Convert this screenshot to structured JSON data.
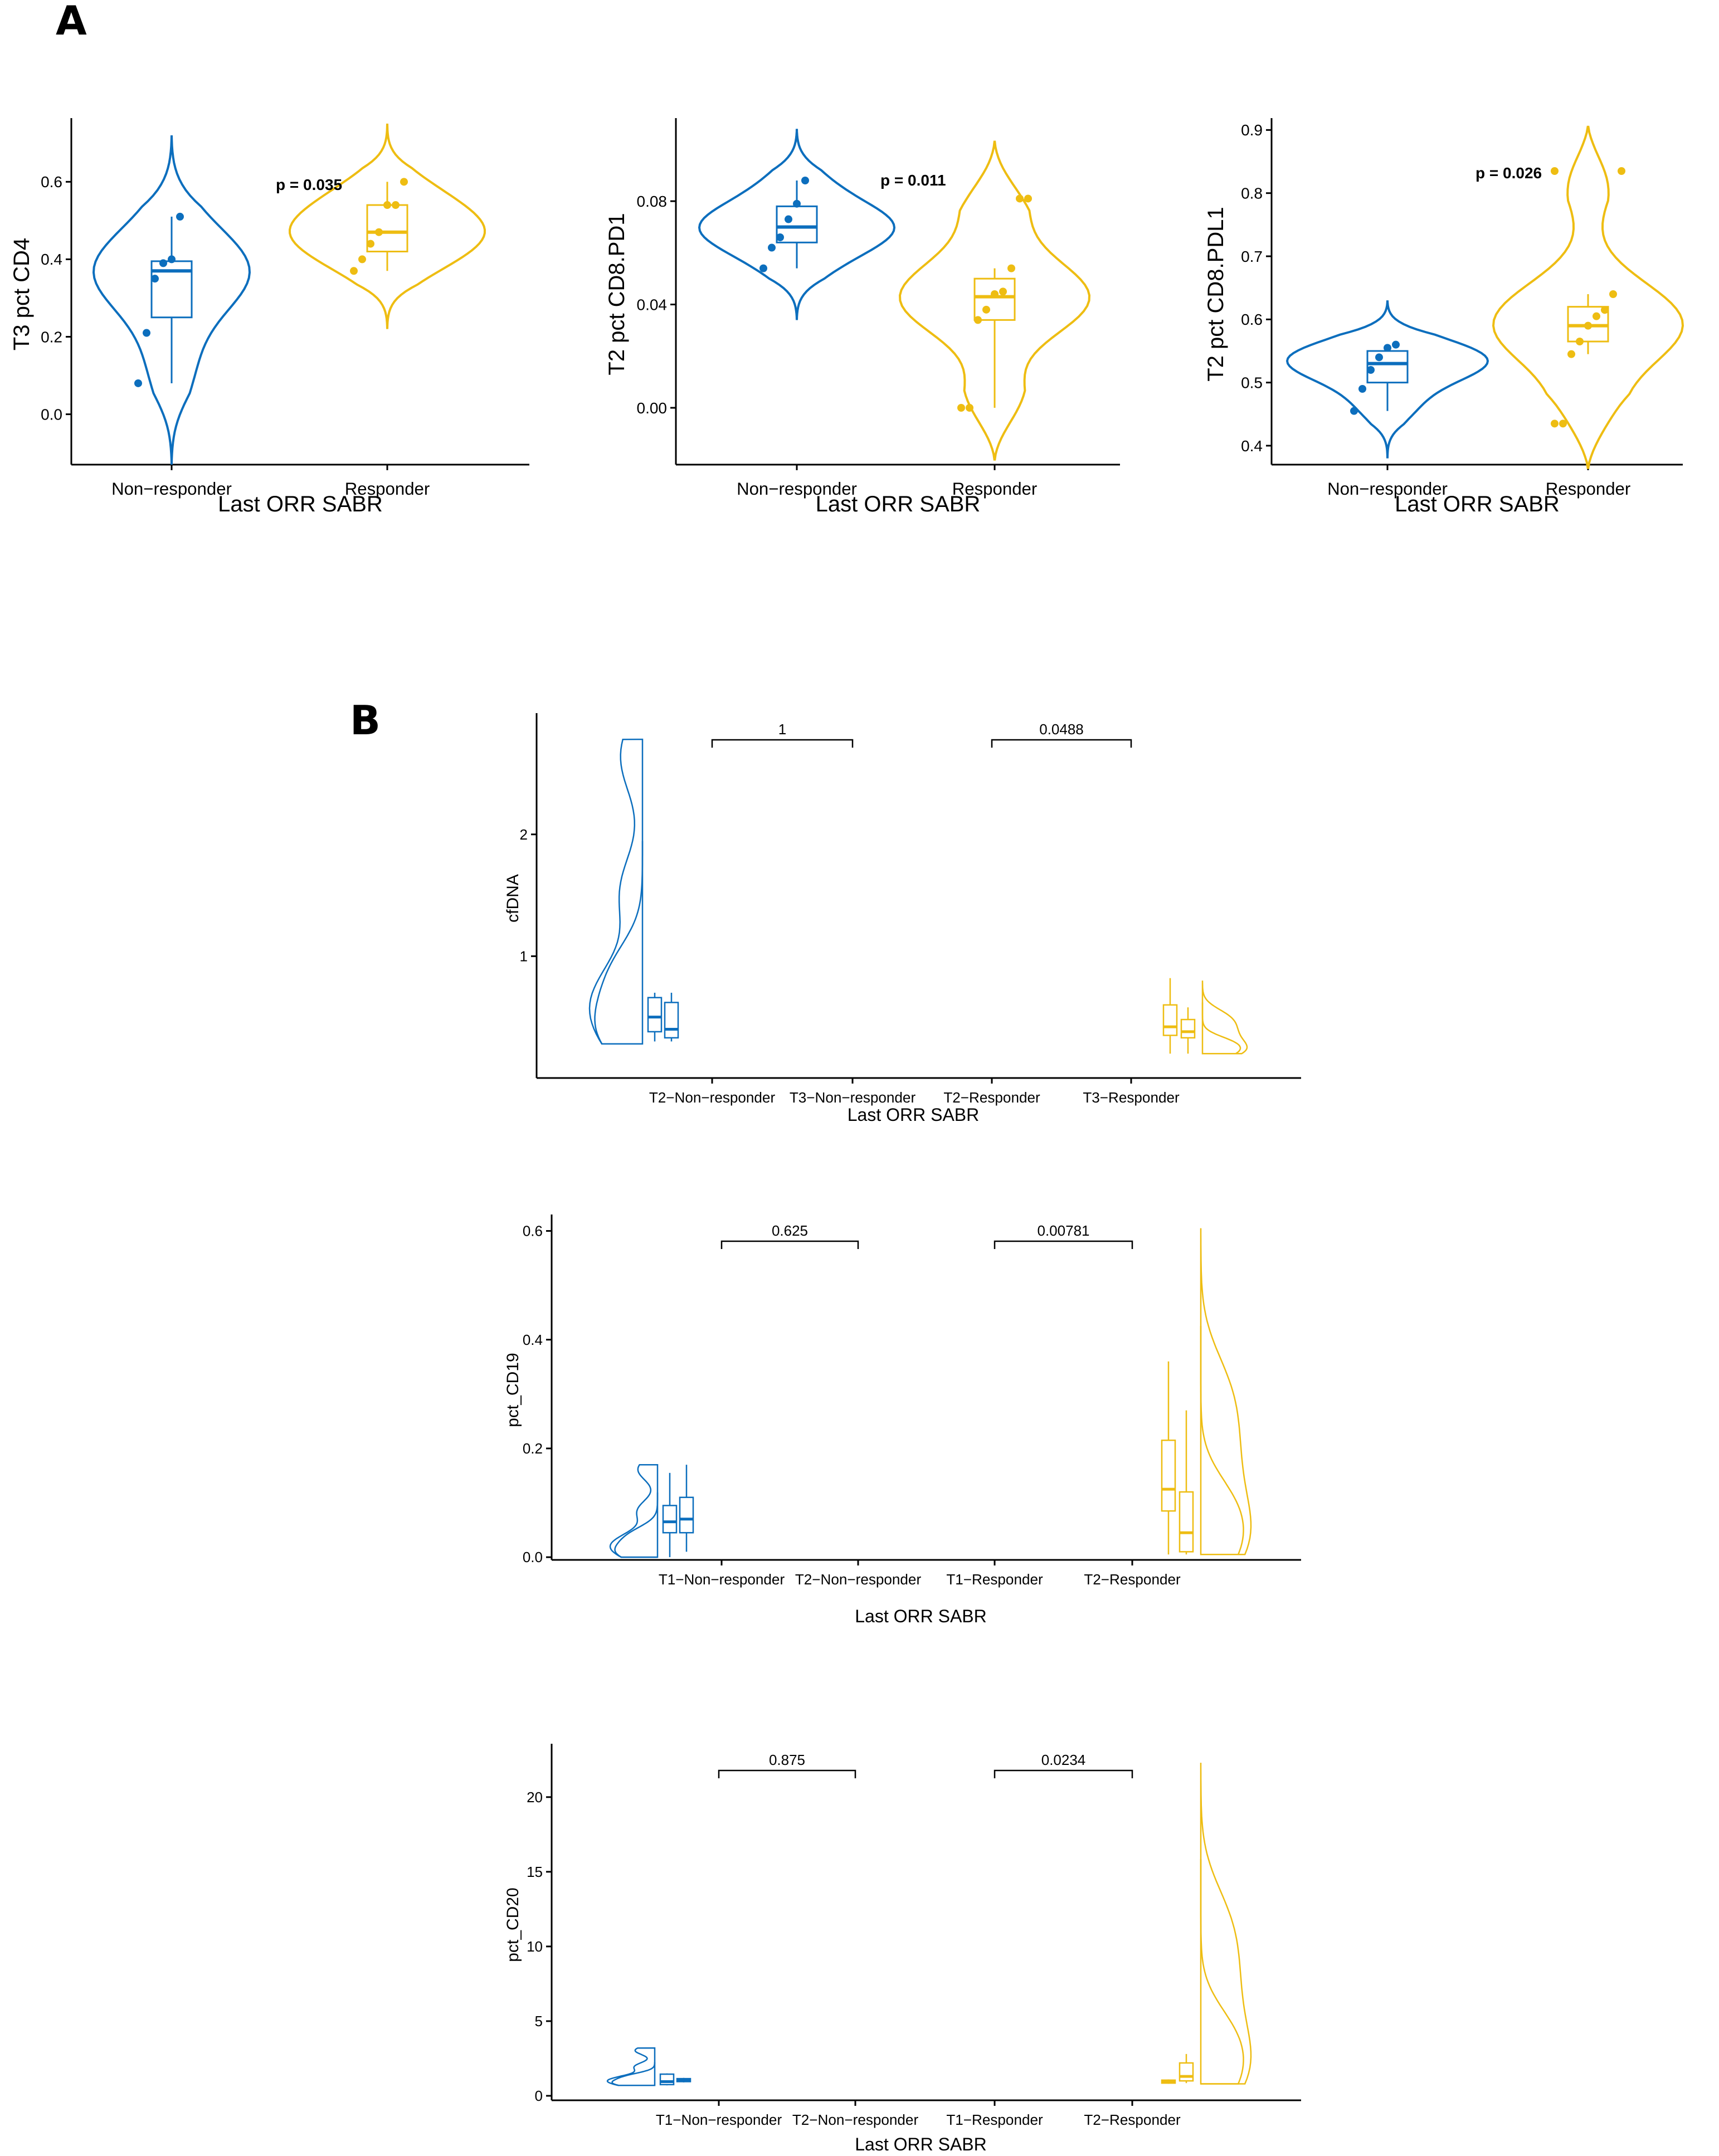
{
  "panels": {
    "a_label": "A",
    "b_label": "B"
  },
  "colors": {
    "non_responder": "#0c6ebd",
    "responder": "#eebd12",
    "axis": "#000000"
  },
  "chart_data": [
    {
      "type": "violin",
      "title": "",
      "xlabel": "Last ORR SABR",
      "ylabel": "T3 pct CD4",
      "ylim": [
        -0.13,
        0.75
      ],
      "yticks": [
        "0.0",
        "0.2",
        "0.4",
        "0.6"
      ],
      "ytick_values": [
        0.0,
        0.2,
        0.4,
        0.6
      ],
      "categories": [
        "Non−responder",
        "Responder"
      ],
      "annotation": "p = 0.035",
      "series": [
        {
          "name": "Non−responder",
          "points": [
            0.08,
            0.21,
            0.35,
            0.39,
            0.4,
            0.51
          ],
          "box": {
            "q1": 0.25,
            "median": 0.37,
            "q3": 0.395,
            "min": 0.08,
            "max": 0.51
          },
          "range": [
            -0.13,
            0.72
          ]
        },
        {
          "name": "Responder",
          "points": [
            0.37,
            0.4,
            0.44,
            0.47,
            0.54,
            0.54,
            0.6
          ],
          "box": {
            "q1": 0.42,
            "median": 0.47,
            "q3": 0.54,
            "min": 0.37,
            "max": 0.6
          },
          "range": [
            0.22,
            0.75
          ]
        }
      ]
    },
    {
      "type": "violin",
      "title": "",
      "xlabel": "Last ORR SABR",
      "ylabel": "T2 pct CD8.PD1",
      "ylim": [
        -0.022,
        0.11
      ],
      "yticks": [
        "0.00",
        "0.04",
        "0.08"
      ],
      "ytick_values": [
        0.0,
        0.04,
        0.08
      ],
      "categories": [
        "Non−responder",
        "Responder"
      ],
      "annotation": "p = 0.011",
      "series": [
        {
          "name": "Non−responder",
          "points": [
            0.054,
            0.062,
            0.066,
            0.073,
            0.079,
            0.088
          ],
          "box": {
            "q1": 0.064,
            "median": 0.07,
            "q3": 0.078,
            "min": 0.054,
            "max": 0.088
          },
          "range": [
            0.034,
            0.108
          ]
        },
        {
          "name": "Responder",
          "points": [
            0.0,
            0.0,
            0.034,
            0.038,
            0.044,
            0.045,
            0.054,
            0.081,
            0.081
          ],
          "box": {
            "q1": 0.034,
            "median": 0.043,
            "q3": 0.05,
            "min": 0.0,
            "max": 0.054
          },
          "range": [
            -0.02,
            0.103
          ]
        }
      ]
    },
    {
      "type": "violin",
      "title": "",
      "xlabel": "Last ORR SABR",
      "ylabel": "T2 pct CD8.PDL1",
      "ylim": [
        0.37,
        0.91
      ],
      "yticks": [
        "0.4",
        "0.5",
        "0.6",
        "0.7",
        "0.8",
        "0.9"
      ],
      "ytick_values": [
        0.4,
        0.5,
        0.6,
        0.7,
        0.8,
        0.9
      ],
      "categories": [
        "Non−responder",
        "Responder"
      ],
      "annotation": "p = 0.026",
      "series": [
        {
          "name": "Non−responder",
          "points": [
            0.455,
            0.49,
            0.52,
            0.54,
            0.555,
            0.56
          ],
          "box": {
            "q1": 0.5,
            "median": 0.53,
            "q3": 0.55,
            "min": 0.455,
            "max": 0.56
          },
          "range": [
            0.38,
            0.63
          ]
        },
        {
          "name": "Responder",
          "points": [
            0.435,
            0.435,
            0.545,
            0.565,
            0.59,
            0.605,
            0.615,
            0.64,
            0.835,
            0.835
          ],
          "box": {
            "q1": 0.565,
            "median": 0.59,
            "q3": 0.62,
            "min": 0.545,
            "max": 0.64
          },
          "range": [
            0.365,
            0.905
          ]
        }
      ]
    },
    {
      "type": "raincloud",
      "title": "",
      "xlabel": "Last ORR SABR",
      "ylabel": "cfDNA",
      "ylim": [
        0.0,
        2.95
      ],
      "yticks": [
        "1",
        "2"
      ],
      "ytick_values": [
        1,
        2
      ],
      "categories": [
        "T2−Non−responder",
        "T3−Non−responder",
        "T2−Responder",
        "T3−Responder"
      ],
      "comparisons": [
        {
          "groups": [
            "T2−Non−responder",
            "T3−Non−responder"
          ],
          "label": "1"
        },
        {
          "groups": [
            "T2−Responder",
            "T3−Responder"
          ],
          "label": "0.0488"
        }
      ],
      "series": [
        {
          "name": "Non−responder",
          "box1": {
            "q1": 0.38,
            "median": 0.5,
            "q3": 0.66,
            "min": 0.3,
            "max": 0.7
          },
          "box2": {
            "q1": 0.33,
            "median": 0.4,
            "q3": 0.62,
            "min": 0.3,
            "max": 0.7
          },
          "range": [
            0.28,
            2.78
          ]
        },
        {
          "name": "Responder",
          "box1": {
            "q1": 0.35,
            "median": 0.42,
            "q3": 0.6,
            "min": 0.2,
            "max": 0.82
          },
          "box2": {
            "q1": 0.33,
            "median": 0.38,
            "q3": 0.48,
            "min": 0.2,
            "max": 0.58
          },
          "range": [
            0.2,
            0.8
          ]
        }
      ]
    },
    {
      "type": "raincloud",
      "title": "",
      "xlabel": "Last ORR SABR",
      "ylabel": "pct_CD19",
      "ylim": [
        -0.005,
        0.62
      ],
      "yticks": [
        "0.0",
        "0.2",
        "0.4",
        "0.6"
      ],
      "ytick_values": [
        0.0,
        0.2,
        0.4,
        0.6
      ],
      "categories": [
        "T1−Non−responder",
        "T2−Non−responder",
        "T1−Responder",
        "T2−Responder"
      ],
      "comparisons": [
        {
          "groups": [
            "T1−Non−responder",
            "T2−Non−responder"
          ],
          "label": "0.625"
        },
        {
          "groups": [
            "T1−Responder",
            "T2−Responder"
          ],
          "label": "0.00781"
        }
      ],
      "series": [
        {
          "name": "Non−responder",
          "box1": {
            "q1": 0.045,
            "median": 0.065,
            "q3": 0.095,
            "min": 0.0,
            "max": 0.155
          },
          "box2": {
            "q1": 0.045,
            "median": 0.07,
            "q3": 0.11,
            "min": 0.01,
            "max": 0.17
          },
          "range": [
            0.0,
            0.17
          ]
        },
        {
          "name": "Responder",
          "box1": {
            "q1": 0.085,
            "median": 0.125,
            "q3": 0.215,
            "min": 0.005,
            "max": 0.36
          },
          "box2": {
            "q1": 0.01,
            "median": 0.045,
            "q3": 0.12,
            "min": 0.005,
            "max": 0.27
          },
          "range": [
            0.005,
            0.605
          ]
        }
      ]
    },
    {
      "type": "raincloud",
      "title": "",
      "xlabel": "Last ORR SABR",
      "ylabel": "pct_CD20",
      "ylim": [
        -0.3,
        23.2
      ],
      "yticks": [
        "0",
        "5",
        "10",
        "15",
        "20"
      ],
      "ytick_values": [
        0,
        5,
        10,
        15,
        20
      ],
      "categories": [
        "T1−Non−responder",
        "T2−Non−responder",
        "T1−Responder",
        "T2−Responder"
      ],
      "comparisons": [
        {
          "groups": [
            "T1−Non−responder",
            "T2−Non−responder"
          ],
          "label": "0.875"
        },
        {
          "groups": [
            "T1−Responder",
            "T2−Responder"
          ],
          "label": "0.0234"
        }
      ],
      "series": [
        {
          "name": "Non−responder",
          "box1": {
            "q1": 0.75,
            "median": 0.95,
            "q3": 1.45,
            "min": 0.7,
            "max": 1.5
          },
          "box2": {
            "q1": 0.95,
            "median": 1.05,
            "q3": 1.15,
            "min": 0.9,
            "max": 1.2
          },
          "range": [
            0.7,
            3.2
          ]
        },
        {
          "name": "Responder",
          "box1": {
            "q1": 0.85,
            "median": 0.95,
            "q3": 1.05,
            "min": 0.8,
            "max": 1.1
          },
          "box2": {
            "q1": 1.0,
            "median": 1.3,
            "q3": 2.2,
            "min": 0.85,
            "max": 2.8
          },
          "range": [
            0.8,
            22.3
          ]
        }
      ]
    }
  ]
}
